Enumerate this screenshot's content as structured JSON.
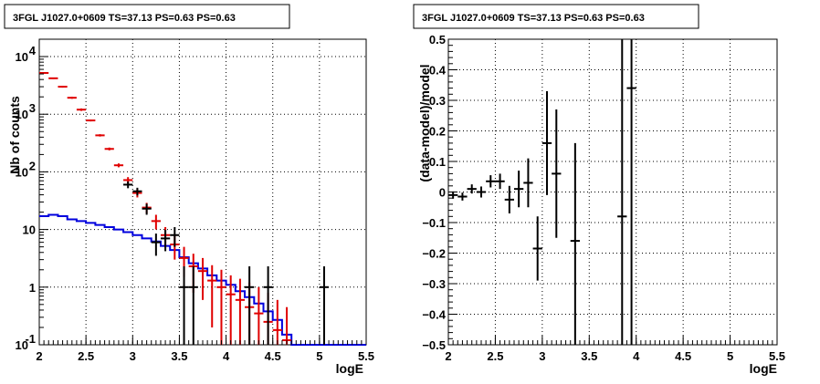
{
  "chart_data": [
    {
      "type": "line",
      "title": "3FGL J1027.0+0609 TS=37.13 PS=0.63 PS=0.63",
      "xlabel": "logE",
      "ylabel": "Nb of counts",
      "xlim": [
        2,
        5.5
      ],
      "ylim": [
        0.1,
        20000
      ],
      "y_scale": "log",
      "grid": true,
      "x_ticks": [
        "2",
        "2.5",
        "3",
        "3.5",
        "4",
        "4.5",
        "5",
        "5.5"
      ],
      "y_ticks": [
        {
          "label": "10",
          "exp": "4",
          "value": 10000
        },
        {
          "label": "10",
          "exp": "3",
          "value": 1000
        },
        {
          "label": "10",
          "exp": "2",
          "value": 100
        },
        {
          "label": "10",
          "exp": "",
          "value": 10
        },
        {
          "label": "1",
          "exp": "",
          "value": 1
        },
        {
          "label": "10",
          "exp": "-1",
          "value": 0.1
        }
      ],
      "colors": {
        "data": "#000000",
        "model_points": "#e00000",
        "background": "#0000dd"
      },
      "series": [
        {
          "kind": "step",
          "color": "#0000dd",
          "bin_edges": [
            2.0,
            2.1,
            2.2,
            2.3,
            2.4,
            2.5,
            2.6,
            2.7,
            2.8,
            2.9,
            3.0,
            3.1,
            3.2,
            3.3,
            3.4,
            3.5,
            3.6,
            3.7,
            3.8,
            3.9,
            4.0,
            4.1,
            4.2,
            4.3,
            4.4,
            4.5,
            4.6,
            4.7,
            4.8,
            4.9,
            5.0,
            5.1,
            5.2,
            5.3,
            5.4,
            5.5
          ],
          "values": [
            17,
            18,
            17,
            15,
            14,
            13,
            12,
            11,
            10,
            9,
            8,
            7,
            6.2,
            5.2,
            4.4,
            3.3,
            2.6,
            2.1,
            1.6,
            1.3,
            1.1,
            0.85,
            0.67,
            0.52,
            0.38,
            0.27,
            0.15,
            0.1,
            0.1,
            0.1,
            0.1,
            0.1,
            0.1,
            0.1,
            0.1
          ]
        },
        {
          "kind": "errorbars",
          "color": "#e00000",
          "points": [
            {
              "x": 2.05,
              "y": 5200,
              "lo": 5050,
              "hi": 5350
            },
            {
              "x": 2.15,
              "y": 4200,
              "lo": 4070,
              "hi": 4330
            },
            {
              "x": 2.25,
              "y": 3000,
              "lo": 2890,
              "hi": 3110
            },
            {
              "x": 2.35,
              "y": 1930,
              "lo": 1850,
              "hi": 2010
            },
            {
              "x": 2.45,
              "y": 1200,
              "lo": 1140,
              "hi": 1260
            },
            {
              "x": 2.55,
              "y": 780,
              "lo": 750,
              "hi": 810
            },
            {
              "x": 2.65,
              "y": 430,
              "lo": 410,
              "hi": 450
            },
            {
              "x": 2.75,
              "y": 250,
              "lo": 236,
              "hi": 264
            },
            {
              "x": 2.85,
              "y": 130,
              "lo": 120,
              "hi": 140
            },
            {
              "x": 2.95,
              "y": 72,
              "lo": 63,
              "hi": 81
            },
            {
              "x": 3.05,
              "y": 43,
              "lo": 36,
              "hi": 50
            },
            {
              "x": 3.15,
              "y": 24,
              "lo": 19,
              "hi": 29
            },
            {
              "x": 3.25,
              "y": 14,
              "lo": 10,
              "hi": 18
            },
            {
              "x": 3.35,
              "y": 8,
              "lo": 5,
              "hi": 11
            },
            {
              "x": 3.45,
              "y": 5.5,
              "lo": 3,
              "hi": 8
            },
            {
              "x": 3.55,
              "y": 3.2,
              "lo": 1.5,
              "hi": 5
            },
            {
              "x": 3.65,
              "y": 2.3,
              "lo": 0.8,
              "hi": 3.8
            },
            {
              "x": 3.75,
              "y": 1.9,
              "lo": 0.6,
              "hi": 3.2
            },
            {
              "x": 3.85,
              "y": 1.3,
              "lo": 0.2,
              "hi": 2.4
            },
            {
              "x": 3.95,
              "y": 1.0,
              "lo": 0.1,
              "hi": 2.0
            },
            {
              "x": 4.05,
              "y": 0.75,
              "lo": 0.1,
              "hi": 1.6
            },
            {
              "x": 4.15,
              "y": 0.6,
              "lo": 0.1,
              "hi": 1.4
            },
            {
              "x": 4.25,
              "y": 0.45,
              "lo": 0.1,
              "hi": 1.2
            },
            {
              "x": 4.35,
              "y": 0.35,
              "lo": 0.1,
              "hi": 1.0
            },
            {
              "x": 4.45,
              "y": 0.25,
              "lo": 0.1,
              "hi": 0.8
            },
            {
              "x": 4.55,
              "y": 0.18,
              "lo": 0.1,
              "hi": 0.6
            },
            {
              "x": 4.65,
              "y": 0.12,
              "lo": 0.1,
              "hi": 0.45
            }
          ]
        },
        {
          "kind": "errorbars",
          "color": "#000000",
          "points": [
            {
              "x": 2.95,
              "y": 60,
              "lo": 52,
              "hi": 68
            },
            {
              "x": 3.05,
              "y": 46,
              "lo": 39,
              "hi": 53
            },
            {
              "x": 3.15,
              "y": 23,
              "lo": 18,
              "hi": 28
            },
            {
              "x": 3.25,
              "y": 6,
              "lo": 3.5,
              "hi": 8.5
            },
            {
              "x": 3.35,
              "y": 7,
              "lo": 4.2,
              "hi": 9.8
            },
            {
              "x": 3.45,
              "y": 8,
              "lo": 5,
              "hi": 11
            },
            {
              "x": 3.55,
              "y": 1,
              "lo": 0.1,
              "hi": 2.3
            },
            {
              "x": 3.65,
              "y": 1,
              "lo": 0.1,
              "hi": 2.3
            },
            {
              "x": 4.25,
              "y": 1,
              "lo": 0.1,
              "hi": 2.3
            },
            {
              "x": 4.45,
              "y": 1,
              "lo": 0.1,
              "hi": 2.3
            },
            {
              "x": 5.05,
              "y": 1,
              "lo": 0.1,
              "hi": 2.3
            }
          ]
        }
      ]
    },
    {
      "type": "scatter",
      "title": "3FGL J1027.0+0609 TS=37.13 PS=0.63 PS=0.63",
      "xlabel": "logE",
      "ylabel": "(data-model)/model",
      "xlim": [
        2,
        5.5
      ],
      "ylim": [
        -0.5,
        0.5
      ],
      "grid": true,
      "x_ticks": [
        "2",
        "2.5",
        "3",
        "3.5",
        "4",
        "4.5",
        "5",
        "5.5"
      ],
      "y_ticks": [
        "-0.5",
        "-0.4",
        "-0.3",
        "-0.2",
        "-0.1",
        "0",
        "0.1",
        "0.2",
        "0.3",
        "0.4",
        "0.5"
      ],
      "series": [
        {
          "kind": "errorbars",
          "color": "#000000",
          "points": [
            {
              "x": 2.05,
              "y": -0.01,
              "lo": -0.022,
              "hi": 0.002
            },
            {
              "x": 2.15,
              "y": -0.015,
              "lo": -0.028,
              "hi": -0.002
            },
            {
              "x": 2.25,
              "y": 0.01,
              "lo": -0.005,
              "hi": 0.025
            },
            {
              "x": 2.35,
              "y": 0.0,
              "lo": -0.018,
              "hi": 0.018
            },
            {
              "x": 2.45,
              "y": 0.035,
              "lo": 0.015,
              "hi": 0.055
            },
            {
              "x": 2.55,
              "y": 0.035,
              "lo": 0.01,
              "hi": 0.06
            },
            {
              "x": 2.65,
              "y": -0.025,
              "lo": -0.07,
              "hi": 0.02
            },
            {
              "x": 2.75,
              "y": 0.01,
              "lo": -0.05,
              "hi": 0.07
            },
            {
              "x": 2.85,
              "y": 0.03,
              "lo": -0.05,
              "hi": 0.11
            },
            {
              "x": 2.95,
              "y": -0.185,
              "lo": -0.29,
              "hi": -0.08
            },
            {
              "x": 3.05,
              "y": 0.16,
              "lo": -0.01,
              "hi": 0.33
            },
            {
              "x": 3.15,
              "y": 0.06,
              "lo": -0.15,
              "hi": 0.27
            },
            {
              "x": 3.35,
              "y": -0.16,
              "lo": -0.5,
              "hi": 0.16
            },
            {
              "x": 3.85,
              "y": -0.08,
              "lo": -0.5,
              "hi": 0.5
            },
            {
              "x": 3.95,
              "y": 0.34,
              "lo": -0.5,
              "hi": 0.5
            }
          ]
        }
      ]
    }
  ]
}
